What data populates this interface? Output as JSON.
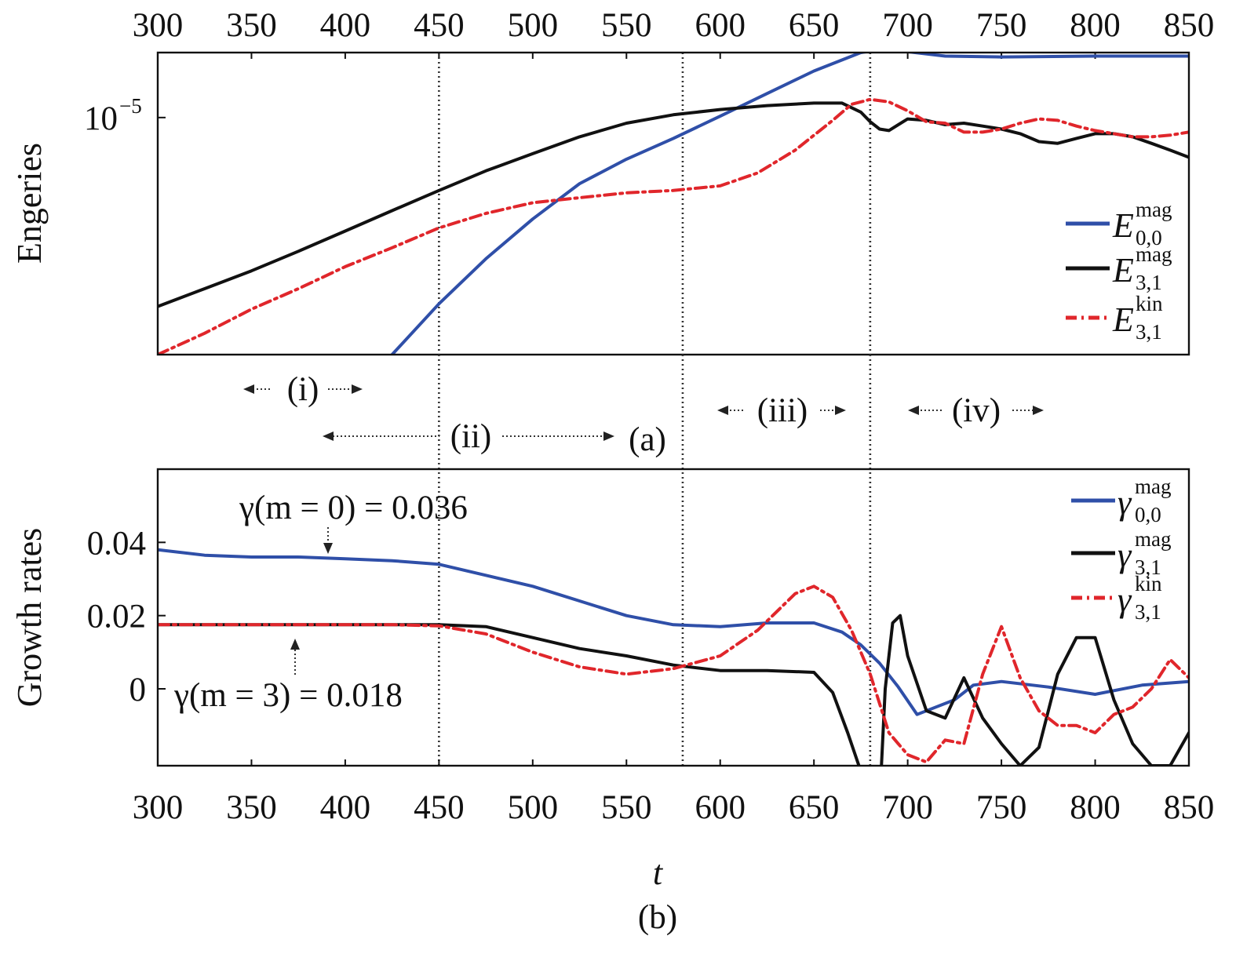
{
  "colors": {
    "blue": "#2f4fa8",
    "black": "#111111",
    "red": "#e0262b"
  },
  "top_axis": {
    "ticks": [
      "300",
      "350",
      "400",
      "450",
      "500",
      "550",
      "600",
      "650",
      "700",
      "750",
      "800",
      "850"
    ]
  },
  "bottom_axis": {
    "ticks": [
      "300",
      "350",
      "400",
      "450",
      "500",
      "550",
      "600",
      "650",
      "700",
      "750",
      "800",
      "850"
    ],
    "xlabel": "t"
  },
  "phases": [
    "(i)",
    "(ii)",
    "(iii)",
    "(iv)"
  ],
  "panel_labels": {
    "a": "(a)",
    "b": "(b)"
  },
  "annotations": {
    "gamma_m0": "γ(m = 0) = 0.036",
    "gamma_m3": "γ(m = 3) = 0.018"
  },
  "chart_data": [
    {
      "type": "line",
      "panel": "(a)",
      "ylabel": "Engeries",
      "yscale": "log",
      "xlim": [
        300,
        850
      ],
      "ylim": [
        1.8e-06,
        1.6e-05
      ],
      "yticks": [
        {
          "value": 1e-05,
          "label_base": "10",
          "label_exp": "−5"
        }
      ],
      "vlines": [
        450,
        580,
        680
      ],
      "legend": {
        "position": "right",
        "entries": [
          {
            "symbol": "E",
            "sup": "mag",
            "sub": "0,0"
          },
          {
            "symbol": "E",
            "sup": "mag",
            "sub": "3,1"
          },
          {
            "symbol": "E",
            "sup": "kin",
            "sub": "3,1"
          }
        ]
      },
      "series": [
        {
          "color": "blue",
          "style": "solid",
          "x": [
            425,
            450,
            475,
            500,
            525,
            550,
            575,
            600,
            625,
            650,
            675,
            690,
            700,
            720,
            750,
            800,
            850
          ],
          "y": [
            1.8e-06,
            2.6e-06,
            3.6e-06,
            4.8e-06,
            6.2e-06,
            7.4e-06,
            8.6e-06,
            1.01e-05,
            1.19e-05,
            1.4e-05,
            1.6e-05,
            1.65e-05,
            1.61e-05,
            1.56e-05,
            1.55e-05,
            1.56e-05,
            1.56e-05
          ]
        },
        {
          "color": "black",
          "style": "solid",
          "x": [
            300,
            325,
            350,
            375,
            400,
            425,
            450,
            475,
            500,
            525,
            550,
            575,
            600,
            625,
            650,
            665,
            675,
            680,
            685,
            690,
            700,
            710,
            720,
            730,
            740,
            750,
            760,
            770,
            780,
            790,
            800,
            810,
            820,
            830,
            840,
            850
          ],
          "y": [
            2.55e-06,
            2.9e-06,
            3.3e-06,
            3.8e-06,
            4.4e-06,
            5.1e-06,
            5.9e-06,
            6.8e-06,
            7.7e-06,
            8.7e-06,
            9.6e-06,
            1.02e-05,
            1.06e-05,
            1.09e-05,
            1.11e-05,
            1.11e-05,
            1.04e-05,
            9.7e-06,
            9.2e-06,
            9.1e-06,
            9.9e-06,
            9.8e-06,
            9.5e-06,
            9.6e-06,
            9.4e-06,
            9.2e-06,
            8.9e-06,
            8.4e-06,
            8.3e-06,
            8.6e-06,
            8.9e-06,
            8.9e-06,
            8.7e-06,
            8.3e-06,
            7.9e-06,
            7.5e-06
          ]
        },
        {
          "color": "red",
          "style": "dashdot",
          "x": [
            300,
            325,
            350,
            375,
            400,
            425,
            450,
            475,
            500,
            525,
            550,
            575,
            600,
            620,
            640,
            660,
            670,
            680,
            690,
            700,
            710,
            720,
            730,
            740,
            750,
            760,
            770,
            780,
            790,
            800,
            810,
            820,
            830,
            840,
            850
          ],
          "y": [
            1.8e-06,
            2.1e-06,
            2.5e-06,
            2.9e-06,
            3.4e-06,
            3.9e-06,
            4.5e-06,
            5e-06,
            5.4e-06,
            5.6e-06,
            5.8e-06,
            5.9e-06,
            6.1e-06,
            6.7e-06,
            7.9e-06,
            9.8e-06,
            1.1e-05,
            1.14e-05,
            1.12e-05,
            1.05e-05,
            9.7e-06,
            9.6e-06,
            9e-06,
            9e-06,
            9.2e-06,
            9.6e-06,
            9.9e-06,
            9.8e-06,
            9.4e-06,
            9.1e-06,
            8.9e-06,
            8.7e-06,
            8.7e-06,
            8.8e-06,
            9e-06
          ]
        }
      ]
    },
    {
      "type": "line",
      "panel": "(b)",
      "ylabel": "Growth rates",
      "xlabel": "t",
      "xlim": [
        300,
        850
      ],
      "ylim": [
        -0.021,
        0.06
      ],
      "yticks": [
        0,
        0.02,
        0.04
      ],
      "ytick_labels": [
        "0",
        "0.02",
        "0.04"
      ],
      "vlines": [
        450,
        580,
        680
      ],
      "legend": {
        "position": "top-right",
        "entries": [
          {
            "symbol": "γ",
            "sup": "mag",
            "sub": "0,0"
          },
          {
            "symbol": "γ",
            "sup": "mag",
            "sub": "3,1"
          },
          {
            "symbol": "γ",
            "sup": "kin",
            "sub": "3,1"
          }
        ]
      },
      "series": [
        {
          "color": "blue",
          "style": "solid",
          "x": [
            300,
            325,
            350,
            375,
            400,
            425,
            450,
            475,
            500,
            525,
            550,
            575,
            600,
            625,
            650,
            665,
            675,
            685,
            695,
            705,
            715,
            725,
            735,
            750,
            775,
            800,
            825,
            850
          ],
          "y": [
            0.038,
            0.0365,
            0.036,
            0.036,
            0.0355,
            0.035,
            0.034,
            0.031,
            0.028,
            0.024,
            0.02,
            0.0175,
            0.017,
            0.018,
            0.018,
            0.0155,
            0.012,
            0.007,
            0.0005,
            -0.007,
            -0.005,
            -0.003,
            0.001,
            0.002,
            0.0005,
            -0.0015,
            0.001,
            0.002
          ]
        },
        {
          "color": "black",
          "style": "solid",
          "x": [
            300,
            325,
            350,
            375,
            400,
            425,
            450,
            475,
            500,
            525,
            550,
            575,
            600,
            625,
            650,
            660,
            668,
            674,
            677,
            686,
            688,
            692,
            696,
            700,
            710,
            720,
            730,
            740,
            750,
            760,
            770,
            780,
            790,
            800,
            810,
            820,
            830,
            840,
            850
          ],
          "y": [
            0.0175,
            0.0175,
            0.0175,
            0.0175,
            0.0175,
            0.0175,
            0.0175,
            0.017,
            0.014,
            0.011,
            0.009,
            0.0065,
            0.005,
            0.005,
            0.0045,
            -0.001,
            -0.012,
            -0.021,
            null,
            -0.021,
            0.0,
            0.018,
            0.02,
            0.009,
            -0.006,
            -0.008,
            0.003,
            -0.008,
            -0.015,
            -0.021,
            -0.016,
            0.004,
            0.014,
            0.014,
            -0.003,
            -0.015,
            -0.021,
            -0.021,
            -0.012
          ]
        },
        {
          "color": "red",
          "style": "dashdot",
          "x": [
            300,
            325,
            350,
            375,
            400,
            425,
            450,
            475,
            500,
            525,
            550,
            575,
            600,
            620,
            640,
            650,
            660,
            670,
            680,
            690,
            700,
            710,
            720,
            730,
            740,
            750,
            760,
            770,
            780,
            790,
            800,
            810,
            820,
            830,
            840,
            850
          ],
          "y": [
            0.0175,
            0.0175,
            0.0175,
            0.0175,
            0.0175,
            0.0175,
            0.0172,
            0.015,
            0.01,
            0.006,
            0.004,
            0.0055,
            0.009,
            0.016,
            0.026,
            0.028,
            0.025,
            0.016,
            0.004,
            -0.012,
            -0.018,
            -0.02,
            -0.014,
            -0.015,
            0.004,
            0.017,
            0.003,
            -0.006,
            -0.01,
            -0.01,
            -0.012,
            -0.007,
            -0.005,
            0.0,
            0.008,
            0.003
          ]
        }
      ]
    }
  ]
}
